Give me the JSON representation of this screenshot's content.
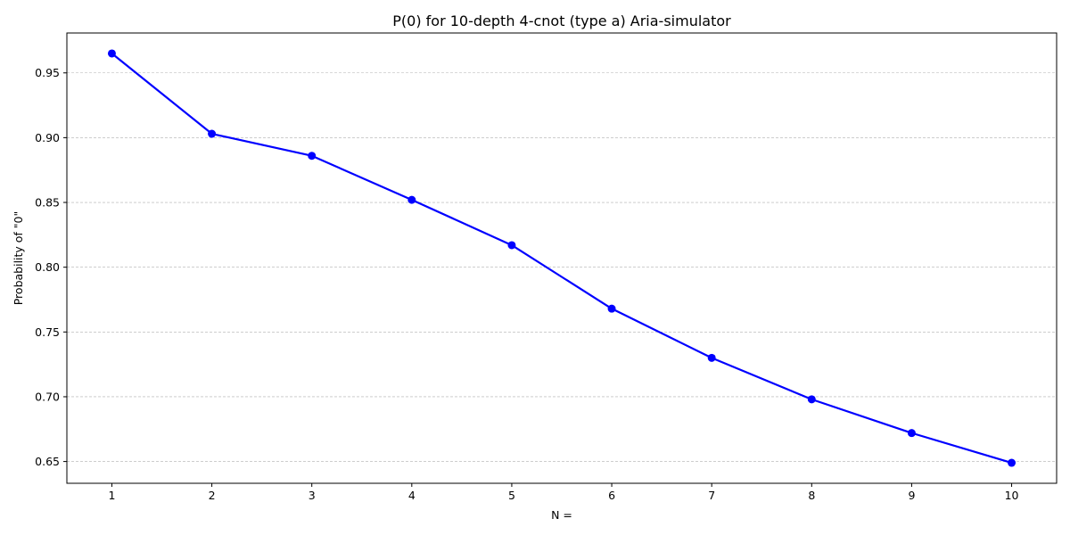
{
  "chart_data": {
    "type": "line",
    "title": "P(0) for 10-depth 4-cnot (type a) Aria-simulator",
    "xlabel": "N =",
    "ylabel": "Probability of \"0\"",
    "x": [
      1,
      2,
      3,
      4,
      5,
      6,
      7,
      8,
      9,
      10
    ],
    "series": [
      {
        "values": [
          0.965,
          0.903,
          0.886,
          0.852,
          0.817,
          0.768,
          0.73,
          0.698,
          0.672,
          0.649
        ],
        "color": "#0000ff",
        "marker": "circle"
      }
    ],
    "x_ticks": [
      "1",
      "2",
      "3",
      "4",
      "5",
      "6",
      "7",
      "8",
      "9",
      "10"
    ],
    "y_ticks": [
      "0.65",
      "0.70",
      "0.75",
      "0.80",
      "0.85",
      "0.90",
      "0.95"
    ],
    "xlim": [
      0.55,
      10.45
    ],
    "ylim": [
      0.6332,
      0.9808
    ],
    "grid": "horizontal-dashed",
    "legend": false
  }
}
